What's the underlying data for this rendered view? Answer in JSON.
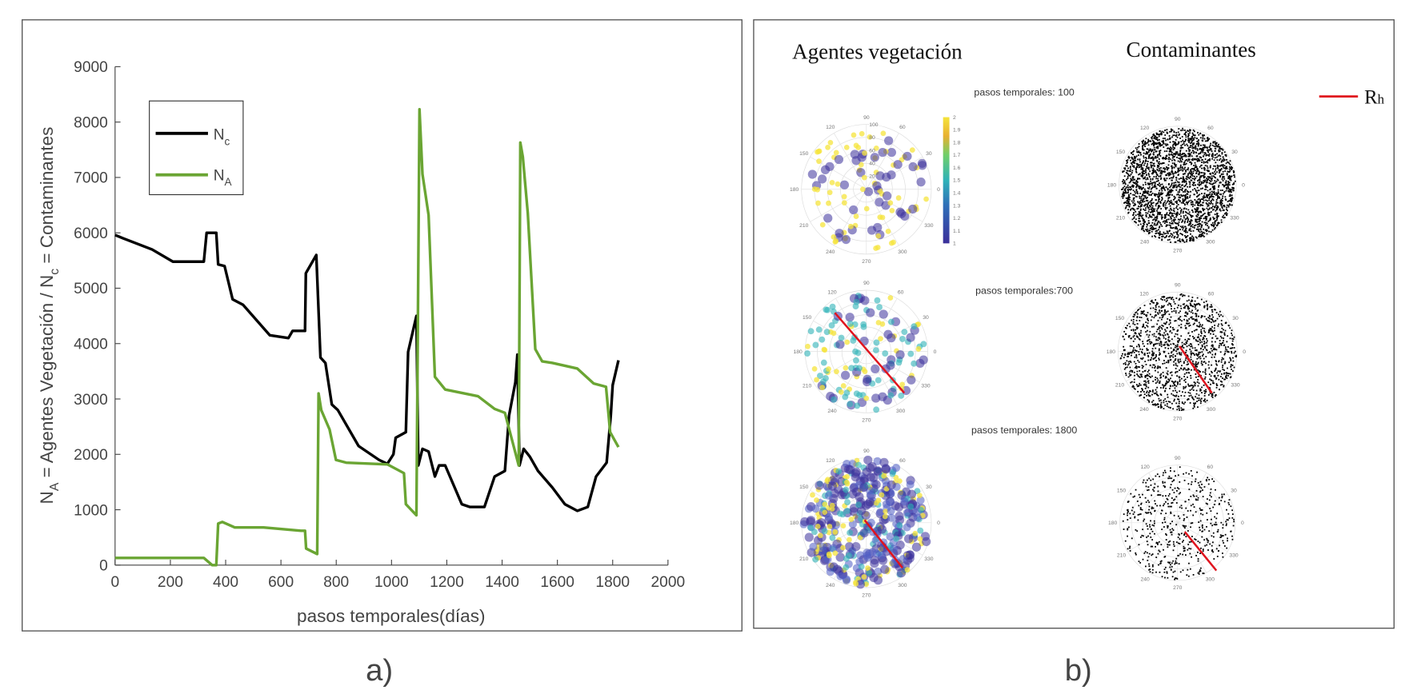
{
  "chart_data": [
    {
      "type": "line",
      "panel_label": "a)",
      "xlabel": "pasos temporales(días)",
      "ylabel_parts": [
        "N",
        "A",
        " = Agentes Vegetación / N",
        "c",
        " = Contaminantes"
      ],
      "xlim": [
        0,
        2000
      ],
      "ylim": [
        0,
        9000
      ],
      "xticks": [
        "0",
        "200",
        "400",
        "600",
        "800",
        "1000",
        "1200",
        "1400",
        "1600",
        "1800",
        "2000"
      ],
      "yticks": [
        "0",
        "1000",
        "2000",
        "3000",
        "4000",
        "5000",
        "6000",
        "7000",
        "8000",
        "9000"
      ],
      "legend_position": "top-left",
      "grid": false,
      "series": [
        {
          "name": "N",
          "sub": "c",
          "color": "#000000",
          "x": [
            0,
            30,
            134,
            209,
            321,
            331,
            366,
            373,
            396,
            425,
            463,
            560,
            627,
            642,
            687,
            690,
            728,
            743,
            761,
            784,
            806,
            881,
            955,
            985,
            1007,
            1015,
            1052,
            1060,
            1090,
            1097,
            1112,
            1134,
            1157,
            1172,
            1194,
            1254,
            1284,
            1336,
            1373,
            1410,
            1425,
            1448,
            1455,
            1463,
            1478,
            1500,
            1530,
            1582,
            1627,
            1672,
            1710,
            1740,
            1778,
            1793,
            1800,
            1821
          ],
          "y": [
            5960,
            5900,
            5700,
            5480,
            5480,
            6000,
            6000,
            5430,
            5400,
            4800,
            4700,
            4150,
            4100,
            4230,
            4230,
            5270,
            5600,
            3750,
            3650,
            2900,
            2800,
            2150,
            1900,
            1830,
            2000,
            2300,
            2400,
            3850,
            4500,
            1800,
            2100,
            2050,
            1600,
            1800,
            1800,
            1100,
            1050,
            1050,
            1600,
            1700,
            2700,
            3300,
            3800,
            1800,
            2100,
            1960,
            1700,
            1400,
            1100,
            980,
            1050,
            1600,
            1850,
            2700,
            3250,
            3700
          ]
        },
        {
          "name": "N",
          "sub": "A",
          "color": "#6aa533",
          "x": [
            0,
            321,
            351,
            366,
            373,
            388,
            433,
            537,
            672,
            687,
            691,
            731,
            736,
            746,
            776,
            799,
            836,
            985,
            1045,
            1052,
            1090,
            1101,
            1112,
            1134,
            1157,
            1194,
            1313,
            1373,
            1410,
            1460,
            1466,
            1475,
            1493,
            1520,
            1545,
            1582,
            1672,
            1731,
            1776,
            1791,
            1821
          ],
          "y": [
            130,
            130,
            0,
            0,
            750,
            780,
            680,
            680,
            620,
            620,
            300,
            200,
            3100,
            2800,
            2450,
            1900,
            1850,
            1820,
            1660,
            1100,
            900,
            8230,
            7060,
            6320,
            3400,
            3170,
            3050,
            2820,
            2750,
            1800,
            7630,
            7370,
            6350,
            3900,
            3680,
            3650,
            3550,
            3280,
            3220,
            2400,
            2130
          ]
        }
      ]
    },
    {
      "type": "scatter",
      "subtype": "polar",
      "panel_label": "b)",
      "column_titles": [
        "Agentes vegetación",
        "Contaminantes"
      ],
      "time_steps": [
        "pasos temporales: 100",
        "pasos temporales:700",
        "pasos temporales: 1800"
      ],
      "legend": {
        "label": "R",
        "sub": "h",
        "color": "#e0141e"
      },
      "angle_ticks": [
        "0",
        "30",
        "60",
        "90",
        "120",
        "150",
        "180",
        "210",
        "240",
        "270",
        "300",
        "330"
      ],
      "radial_ticks": [
        "20",
        "40",
        "60",
        "80",
        "100"
      ],
      "colorbar": {
        "ticks": [
          "1",
          "1.1",
          "1.2",
          "1.3",
          "1.4",
          "1.5",
          "1.6",
          "1.7",
          "1.8",
          "1.9",
          "2"
        ],
        "range": [
          1,
          2
        ]
      },
      "colors": {
        "low": "#3b2f9a",
        "mid": "#2fb2b8",
        "high": "#f5e43c",
        "points": "#000000"
      }
    }
  ]
}
